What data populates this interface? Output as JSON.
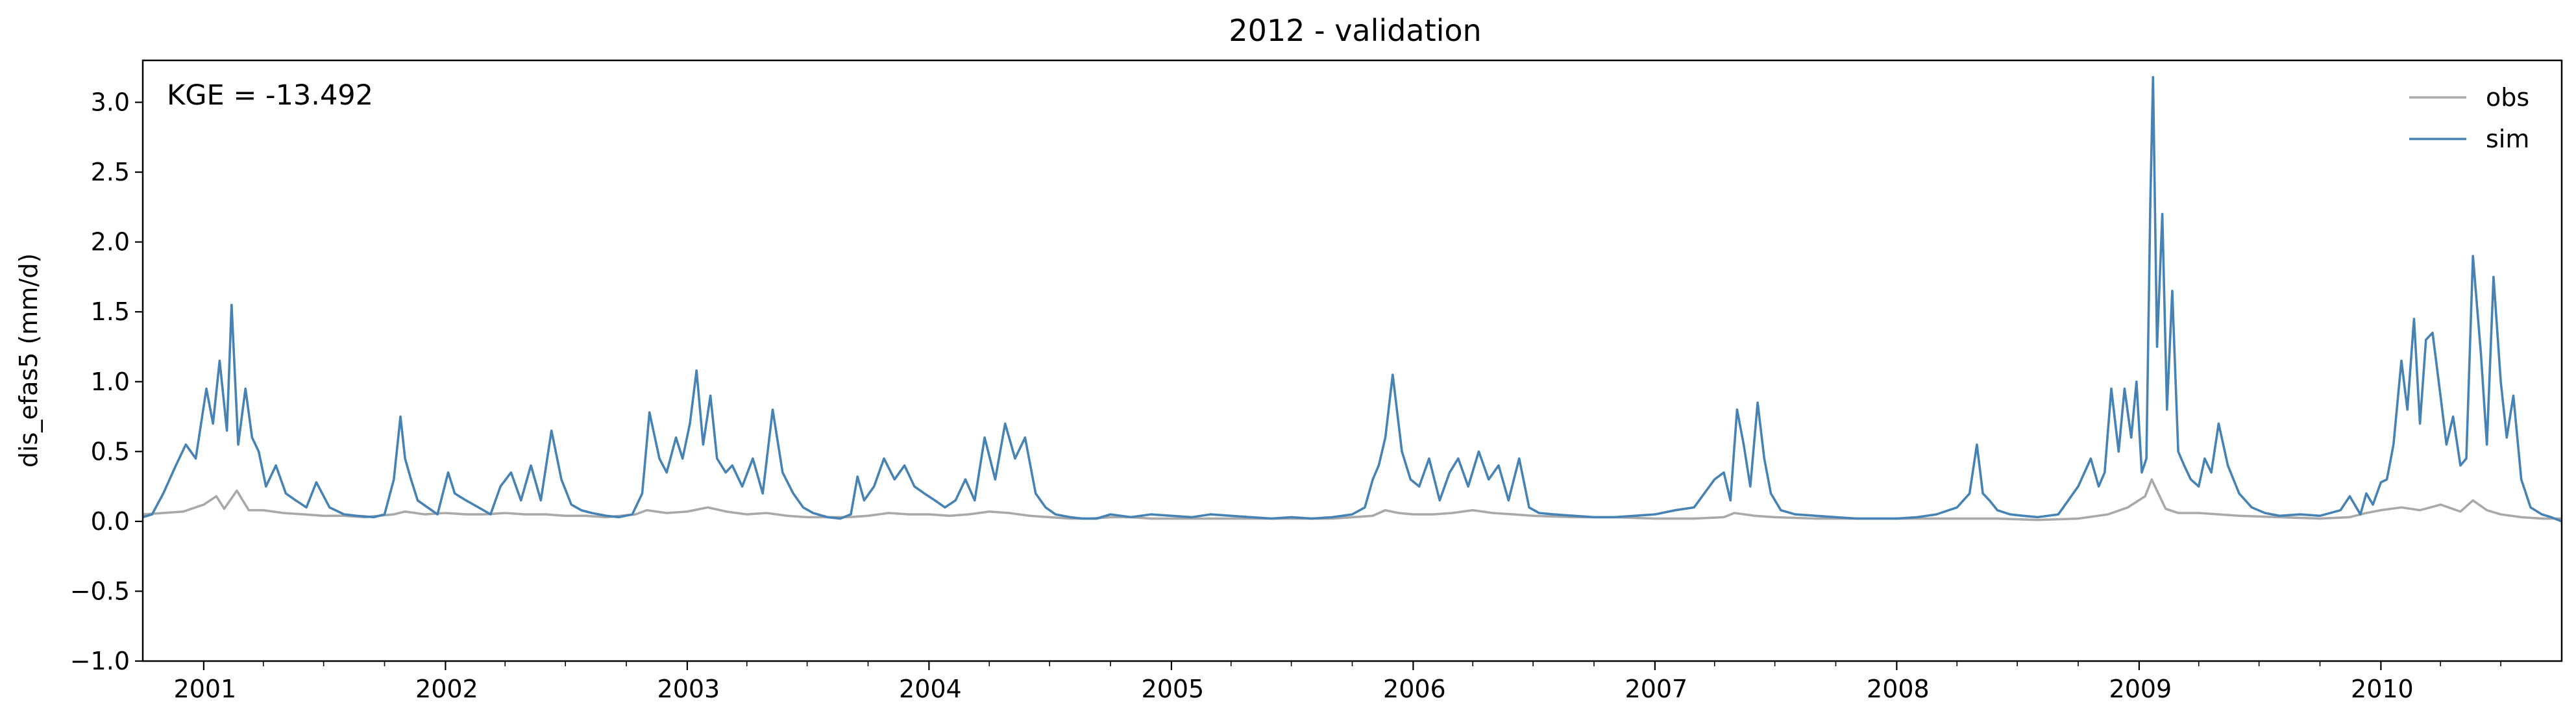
{
  "chart_data": {
    "type": "line",
    "title": "2012 - validation",
    "xlabel": "",
    "ylabel": "dis_efas5 (mm/d)",
    "annotation": "KGE = -13.492",
    "xlim": [
      "2000-10-01",
      "2010-10-01"
    ],
    "ylim": [
      -1.0,
      3.3
    ],
    "yticks": [
      -1.0,
      -0.5,
      0.0,
      0.5,
      1.0,
      1.5,
      2.0,
      2.5,
      3.0
    ],
    "ytick_labels": [
      "−1.0",
      "−0.5",
      "0.0",
      "0.5",
      "1.0",
      "1.5",
      "2.0",
      "2.5",
      "3.0"
    ],
    "xticks": [
      "2001-01-01",
      "2002-01-01",
      "2003-01-01",
      "2004-01-01",
      "2005-01-01",
      "2006-01-01",
      "2007-01-01",
      "2008-01-01",
      "2009-01-01",
      "2010-01-01"
    ],
    "xtick_labels": [
      "2001",
      "2002",
      "2003",
      "2004",
      "2005",
      "2006",
      "2007",
      "2008",
      "2009",
      "2010"
    ],
    "grid": false,
    "legend_position": "top-right",
    "series": [
      {
        "name": "obs",
        "color": "#a9a9a9",
        "x": [
          "2000-10-01",
          "2000-11-01",
          "2000-12-01",
          "2001-01-01",
          "2001-01-20",
          "2001-02-01",
          "2001-02-20",
          "2001-03-10",
          "2001-04-01",
          "2001-05-01",
          "2001-06-01",
          "2001-07-01",
          "2001-08-01",
          "2001-09-01",
          "2001-10-15",
          "2001-11-01",
          "2001-12-01",
          "2002-01-01",
          "2002-02-01",
          "2002-03-01",
          "2002-04-01",
          "2002-05-01",
          "2002-06-01",
          "2002-07-01",
          "2002-08-01",
          "2002-09-01",
          "2002-10-15",
          "2002-11-01",
          "2002-12-01",
          "2003-01-01",
          "2003-02-01",
          "2003-03-01",
          "2003-04-01",
          "2003-05-01",
          "2003-06-01",
          "2003-07-01",
          "2003-08-01",
          "2003-09-01",
          "2003-10-01",
          "2003-11-01",
          "2003-12-01",
          "2004-01-01",
          "2004-02-01",
          "2004-03-01",
          "2004-04-01",
          "2004-05-01",
          "2004-06-01",
          "2004-07-01",
          "2004-08-01",
          "2004-09-01",
          "2004-10-01",
          "2004-11-01",
          "2004-12-01",
          "2005-01-01",
          "2005-03-01",
          "2005-05-01",
          "2005-07-01",
          "2005-09-01",
          "2005-11-01",
          "2005-11-20",
          "2005-12-10",
          "2006-01-01",
          "2006-02-01",
          "2006-03-01",
          "2006-04-01",
          "2006-05-01",
          "2006-06-01",
          "2006-07-01",
          "2006-09-01",
          "2006-11-01",
          "2007-01-01",
          "2007-03-01",
          "2007-04-15",
          "2007-05-01",
          "2007-06-01",
          "2007-07-01",
          "2007-09-01",
          "2007-11-01",
          "2008-01-01",
          "2008-03-01",
          "2008-05-01",
          "2008-06-01",
          "2008-08-01",
          "2008-10-01",
          "2008-11-15",
          "2008-12-15",
          "2009-01-10",
          "2009-01-20",
          "2009-02-10",
          "2009-03-01",
          "2009-04-01",
          "2009-05-01",
          "2009-06-01",
          "2009-08-01",
          "2009-10-01",
          "2009-11-15",
          "2009-12-10",
          "2010-01-01",
          "2010-02-01",
          "2010-03-01",
          "2010-04-01",
          "2010-05-01",
          "2010-05-20",
          "2010-06-10",
          "2010-07-01",
          "2010-08-01",
          "2010-09-01",
          "2010-10-01"
        ],
        "values": [
          0.05,
          0.06,
          0.07,
          0.12,
          0.18,
          0.09,
          0.22,
          0.08,
          0.08,
          0.06,
          0.05,
          0.04,
          0.04,
          0.03,
          0.05,
          0.07,
          0.05,
          0.06,
          0.05,
          0.05,
          0.06,
          0.05,
          0.05,
          0.04,
          0.04,
          0.03,
          0.05,
          0.08,
          0.06,
          0.07,
          0.1,
          0.07,
          0.05,
          0.06,
          0.04,
          0.03,
          0.03,
          0.03,
          0.04,
          0.06,
          0.05,
          0.05,
          0.04,
          0.05,
          0.07,
          0.06,
          0.04,
          0.03,
          0.02,
          0.02,
          0.03,
          0.03,
          0.02,
          0.02,
          0.02,
          0.02,
          0.02,
          0.02,
          0.04,
          0.08,
          0.06,
          0.05,
          0.05,
          0.06,
          0.08,
          0.06,
          0.05,
          0.04,
          0.03,
          0.03,
          0.02,
          0.02,
          0.03,
          0.06,
          0.04,
          0.03,
          0.02,
          0.02,
          0.02,
          0.02,
          0.02,
          0.02,
          0.01,
          0.02,
          0.05,
          0.1,
          0.18,
          0.3,
          0.09,
          0.06,
          0.06,
          0.05,
          0.04,
          0.03,
          0.02,
          0.03,
          0.06,
          0.08,
          0.1,
          0.08,
          0.12,
          0.07,
          0.15,
          0.08,
          0.05,
          0.03,
          0.02,
          0.02
        ]
      },
      {
        "name": "sim",
        "color": "#4682b4",
        "x": [
          "2000-10-01",
          "2000-10-15",
          "2000-11-01",
          "2000-11-20",
          "2000-12-05",
          "2000-12-20",
          "2001-01-05",
          "2001-01-15",
          "2001-01-25",
          "2001-02-05",
          "2001-02-12",
          "2001-02-22",
          "2001-03-05",
          "2001-03-15",
          "2001-03-25",
          "2001-04-05",
          "2001-04-20",
          "2001-05-05",
          "2001-05-20",
          "2001-06-05",
          "2001-06-20",
          "2001-07-10",
          "2001-08-01",
          "2001-08-20",
          "2001-09-15",
          "2001-10-01",
          "2001-10-15",
          "2001-10-25",
          "2001-11-01",
          "2001-11-10",
          "2001-11-20",
          "2001-12-05",
          "2001-12-20",
          "2002-01-05",
          "2002-01-15",
          "2002-02-01",
          "2002-02-20",
          "2002-03-10",
          "2002-03-25",
          "2002-04-10",
          "2002-04-25",
          "2002-05-10",
          "2002-05-25",
          "2002-06-10",
          "2002-06-25",
          "2002-07-10",
          "2002-07-25",
          "2002-08-10",
          "2002-09-01",
          "2002-09-20",
          "2002-10-10",
          "2002-10-25",
          "2002-11-05",
          "2002-11-20",
          "2002-12-01",
          "2002-12-15",
          "2002-12-25",
          "2003-01-05",
          "2003-01-15",
          "2003-01-25",
          "2003-02-05",
          "2003-02-15",
          "2003-02-28",
          "2003-03-10",
          "2003-03-25",
          "2003-04-10",
          "2003-04-25",
          "2003-05-10",
          "2003-05-25",
          "2003-06-10",
          "2003-06-25",
          "2003-07-10",
          "2003-08-01",
          "2003-08-20",
          "2003-09-05",
          "2003-09-15",
          "2003-09-25",
          "2003-10-10",
          "2003-10-25",
          "2003-11-10",
          "2003-11-25",
          "2003-12-10",
          "2003-12-25",
          "2004-01-10",
          "2004-01-25",
          "2004-02-10",
          "2004-02-25",
          "2004-03-10",
          "2004-03-25",
          "2004-04-10",
          "2004-04-25",
          "2004-05-10",
          "2004-05-25",
          "2004-06-10",
          "2004-06-25",
          "2004-07-10",
          "2004-08-01",
          "2004-08-20",
          "2004-09-10",
          "2004-10-01",
          "2004-11-01",
          "2004-12-01",
          "2005-01-01",
          "2005-02-01",
          "2005-03-01",
          "2005-04-01",
          "2005-05-01",
          "2005-06-01",
          "2005-07-01",
          "2005-08-01",
          "2005-09-01",
          "2005-10-01",
          "2005-10-20",
          "2005-11-01",
          "2005-11-10",
          "2005-11-20",
          "2005-12-01",
          "2005-12-15",
          "2005-12-28",
          "2006-01-10",
          "2006-01-25",
          "2006-02-10",
          "2006-02-25",
          "2006-03-10",
          "2006-03-25",
          "2006-04-10",
          "2006-04-25",
          "2006-05-10",
          "2006-05-25",
          "2006-06-10",
          "2006-06-25",
          "2006-07-10",
          "2006-08-01",
          "2006-09-01",
          "2006-10-01",
          "2006-11-01",
          "2006-12-01",
          "2007-01-01",
          "2007-02-01",
          "2007-03-01",
          "2007-04-01",
          "2007-04-15",
          "2007-04-25",
          "2007-05-05",
          "2007-05-15",
          "2007-05-25",
          "2007-06-05",
          "2007-06-15",
          "2007-06-25",
          "2007-07-10",
          "2007-08-01",
          "2007-09-01",
          "2007-10-01",
          "2007-11-01",
          "2007-12-01",
          "2008-01-01",
          "2008-02-01",
          "2008-03-01",
          "2008-04-01",
          "2008-04-20",
          "2008-05-01",
          "2008-05-10",
          "2008-05-20",
          "2008-06-01",
          "2008-06-20",
          "2008-07-10",
          "2008-08-01",
          "2008-09-01",
          "2008-10-01",
          "2008-10-20",
          "2008-11-01",
          "2008-11-10",
          "2008-11-20",
          "2008-12-01",
          "2008-12-10",
          "2008-12-20",
          "2008-12-28",
          "2009-01-05",
          "2009-01-12",
          "2009-01-18",
          "2009-01-22",
          "2009-01-28",
          "2009-02-05",
          "2009-02-12",
          "2009-02-20",
          "2009-03-01",
          "2009-03-10",
          "2009-03-20",
          "2009-04-01",
          "2009-04-10",
          "2009-04-20",
          "2009-05-01",
          "2009-05-15",
          "2009-06-01",
          "2009-06-20",
          "2009-07-10",
          "2009-08-01",
          "2009-09-01",
          "2009-10-01",
          "2009-11-01",
          "2009-11-15",
          "2009-12-01",
          "2009-12-10",
          "2009-12-20",
          "2010-01-01",
          "2010-01-10",
          "2010-01-20",
          "2010-02-01",
          "2010-02-10",
          "2010-02-20",
          "2010-03-01",
          "2010-03-10",
          "2010-03-20",
          "2010-04-01",
          "2010-04-10",
          "2010-04-20",
          "2010-05-01",
          "2010-05-10",
          "2010-05-20",
          "2010-06-01",
          "2010-06-10",
          "2010-06-20",
          "2010-07-01",
          "2010-07-10",
          "2010-07-20",
          "2010-08-01",
          "2010-08-15",
          "2010-09-01",
          "2010-09-15",
          "2010-10-01"
        ],
        "values": [
          0.03,
          0.05,
          0.2,
          0.4,
          0.55,
          0.45,
          0.95,
          0.7,
          1.15,
          0.65,
          1.55,
          0.55,
          0.95,
          0.6,
          0.5,
          0.25,
          0.4,
          0.2,
          0.15,
          0.1,
          0.28,
          0.1,
          0.05,
          0.04,
          0.03,
          0.05,
          0.3,
          0.75,
          0.45,
          0.3,
          0.15,
          0.1,
          0.05,
          0.35,
          0.2,
          0.15,
          0.1,
          0.05,
          0.25,
          0.35,
          0.15,
          0.4,
          0.15,
          0.65,
          0.3,
          0.12,
          0.08,
          0.06,
          0.04,
          0.03,
          0.05,
          0.2,
          0.78,
          0.45,
          0.35,
          0.6,
          0.45,
          0.7,
          1.08,
          0.55,
          0.9,
          0.45,
          0.35,
          0.4,
          0.25,
          0.45,
          0.2,
          0.8,
          0.35,
          0.2,
          0.1,
          0.06,
          0.03,
          0.02,
          0.05,
          0.32,
          0.15,
          0.25,
          0.45,
          0.3,
          0.4,
          0.25,
          0.2,
          0.15,
          0.1,
          0.15,
          0.3,
          0.15,
          0.6,
          0.3,
          0.7,
          0.45,
          0.6,
          0.2,
          0.1,
          0.05,
          0.03,
          0.02,
          0.02,
          0.05,
          0.03,
          0.05,
          0.04,
          0.03,
          0.05,
          0.04,
          0.03,
          0.02,
          0.03,
          0.02,
          0.03,
          0.05,
          0.1,
          0.3,
          0.4,
          0.6,
          1.05,
          0.5,
          0.3,
          0.25,
          0.45,
          0.15,
          0.35,
          0.45,
          0.25,
          0.5,
          0.3,
          0.4,
          0.15,
          0.45,
          0.1,
          0.06,
          0.05,
          0.04,
          0.03,
          0.03,
          0.04,
          0.05,
          0.08,
          0.1,
          0.3,
          0.35,
          0.15,
          0.8,
          0.55,
          0.25,
          0.85,
          0.45,
          0.2,
          0.08,
          0.05,
          0.04,
          0.03,
          0.02,
          0.02,
          0.02,
          0.03,
          0.05,
          0.1,
          0.2,
          0.55,
          0.2,
          0.15,
          0.08,
          0.05,
          0.04,
          0.03,
          0.05,
          0.25,
          0.45,
          0.25,
          0.35,
          0.95,
          0.5,
          0.95,
          0.6,
          1.0,
          0.35,
          0.45,
          2.3,
          3.18,
          1.25,
          2.2,
          0.8,
          1.65,
          0.5,
          0.4,
          0.3,
          0.25,
          0.45,
          0.35,
          0.7,
          0.4,
          0.2,
          0.1,
          0.06,
          0.04,
          0.05,
          0.04,
          0.08,
          0.18,
          0.05,
          0.2,
          0.12,
          0.28,
          0.3,
          0.55,
          1.15,
          0.8,
          1.45,
          0.7,
          1.3,
          1.35,
          0.9,
          0.55,
          0.75,
          0.4,
          0.45,
          1.9,
          1.2,
          0.55,
          1.75,
          1.0,
          0.6,
          0.9,
          0.3,
          0.1,
          0.05,
          0.03,
          0.0
        ]
      }
    ]
  }
}
